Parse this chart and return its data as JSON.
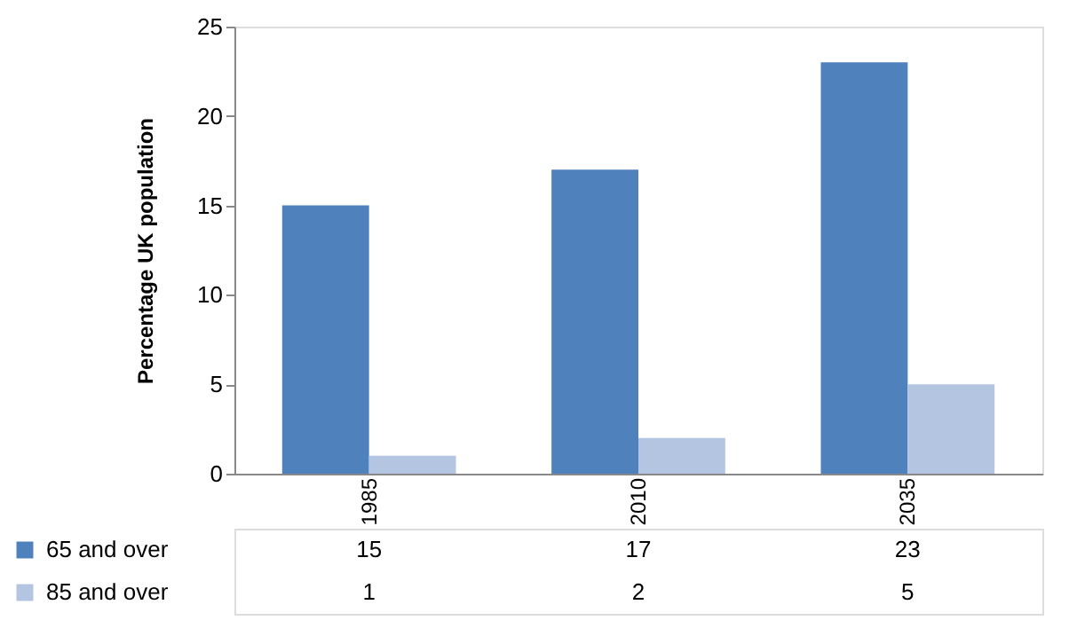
{
  "chart_data": {
    "type": "bar",
    "ylabel": "Percentage UK population",
    "categories": [
      "1985",
      "2010",
      "2035"
    ],
    "series": [
      {
        "name": "65 and over",
        "color": "#4f81bd",
        "values": [
          15,
          17,
          23
        ]
      },
      {
        "name": "85 and over",
        "color": "#b4c5e2",
        "values": [
          1,
          2,
          5
        ]
      }
    ],
    "ylim": [
      0,
      25
    ],
    "yticks": [
      0,
      5,
      10,
      15,
      20,
      25
    ],
    "grid": false,
    "legend": "bottom",
    "data_labels": true
  }
}
